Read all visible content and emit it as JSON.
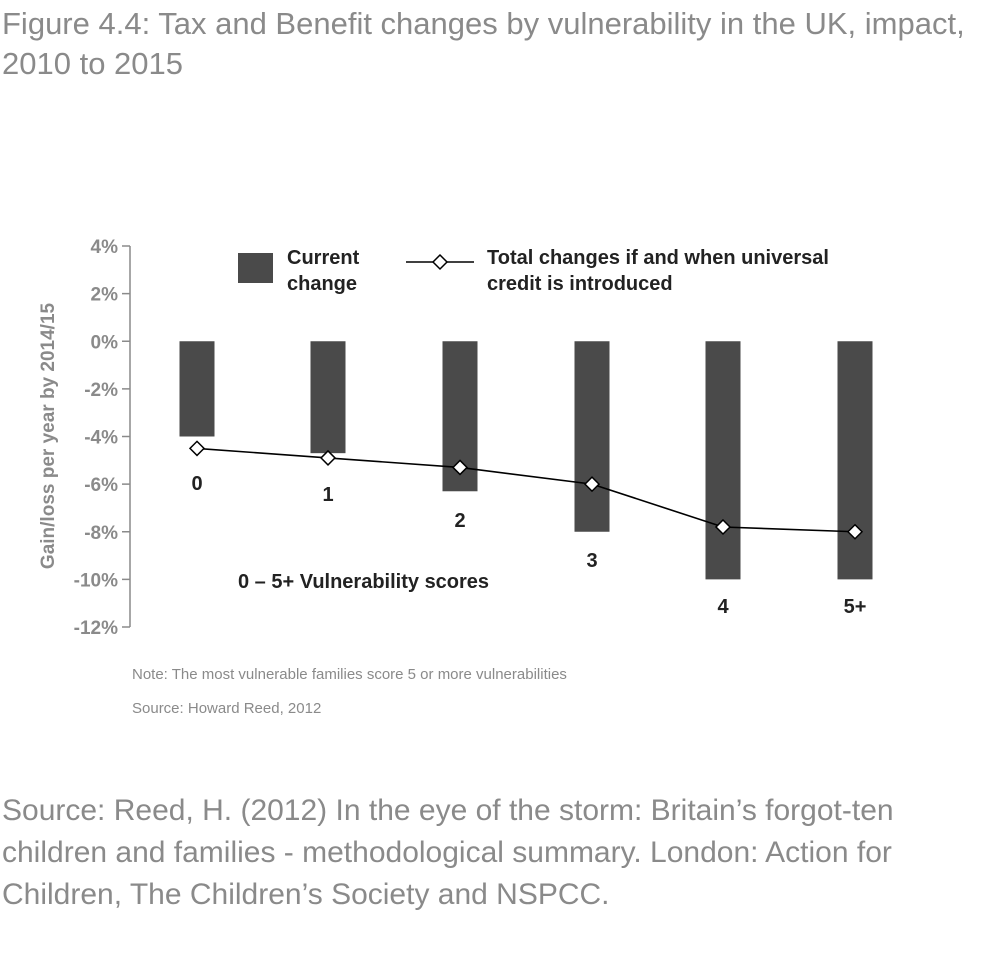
{
  "figure_title": "Figure 4.4:  Tax and Benefit changes by vulnerability in the UK, impact, 2010 to 2015",
  "chart_data": {
    "type": "bar",
    "categories": [
      "0",
      "1",
      "2",
      "3",
      "4",
      "5+"
    ],
    "series": [
      {
        "name": "Current change",
        "type": "bar",
        "values": [
          -4.0,
          -4.7,
          -6.3,
          -8.0,
          -10.0,
          -10.0
        ]
      },
      {
        "name": "Total changes if and when universal credit is introduced",
        "type": "line",
        "marker": "diamond",
        "values": [
          -4.5,
          -4.9,
          -5.3,
          -6.0,
          -7.8,
          -8.0
        ]
      }
    ],
    "ylabel": "Gain/loss per year by 2014/15",
    "ylim": [
      -12,
      4
    ],
    "yticks": [
      4,
      2,
      0,
      -2,
      -4,
      -6,
      -8,
      -10,
      -12
    ],
    "ytick_labels": [
      "4%",
      "2%",
      "0%",
      "-2%",
      "-4%",
      "-6%",
      "-8%",
      "-10%",
      "-12%"
    ],
    "legend": {
      "bar_label_line1": "Current",
      "bar_label_line2": "change",
      "line_label_line1": "Total changes if and when universal",
      "line_label_line2": "credit is introduced",
      "placement": "top"
    },
    "annotation": "0 – 5+  Vulnerability scores",
    "note": "Note: The most vulnerable families score 5 or more vulnerabilities",
    "source": "Source: Howard Reed, 2012",
    "grid": false,
    "colors": {
      "bar": "#4a4a4a",
      "line": "#000000",
      "axis": "#8a8a8a",
      "text": "#222222"
    }
  },
  "bottom_source": "Source: Reed, H. (2012) In the eye of the storm: Britain’s forgot-ten children and families - methodological summary. London: Action for Children, The Children’s Society and NSPCC."
}
